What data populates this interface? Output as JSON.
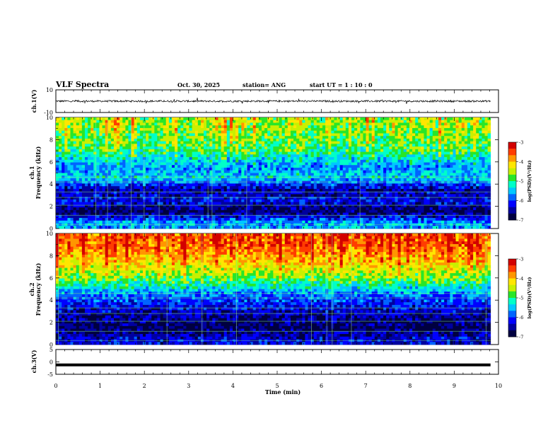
{
  "header": {
    "title": "VLF Spectra",
    "date": "Oct. 30, 2025",
    "station": "station= ANG",
    "start": "start  UT =   1 : 10 : 0"
  },
  "colors": {
    "scale": [
      "#000040",
      "#0000a0",
      "#0000ff",
      "#0064ff",
      "#00c8ff",
      "#00ffc8",
      "#28e628",
      "#c8f000",
      "#ffe600",
      "#ff9600",
      "#ff3c00",
      "#d20000"
    ],
    "trace": "#000000"
  },
  "chart_data": [
    {
      "type": "line",
      "ylabel": "ch.1(V)",
      "ylim": [
        -10,
        10
      ],
      "yticks": [
        "10",
        "-10"
      ],
      "baseline": 0,
      "grid": false
    },
    {
      "type": "heatmap",
      "ylabel": "ch.1\nFrequency (kHz)",
      "ylim": [
        0,
        10
      ],
      "yticks": [
        "0",
        "2",
        "4",
        "6",
        "8",
        "10"
      ],
      "colorbar": {
        "label": "log(PSD)(V²/Hz)",
        "range": [
          -7,
          -3
        ],
        "ticks": [
          "-3",
          "-4",
          "-5",
          "-6",
          "-7"
        ]
      },
      "intensity_profile_khz": [
        {
          "f": 0.5,
          "level": -5.6
        },
        {
          "f": 1.5,
          "level": -6.8
        },
        {
          "f": 2.5,
          "level": -6.2
        },
        {
          "f": 3.5,
          "level": -6.5
        },
        {
          "f": 4.6,
          "level": -5.4
        },
        {
          "f": 5.5,
          "level": -5.8
        },
        {
          "f": 7.0,
          "level": -5.1
        },
        {
          "f": 9.0,
          "level": -4.9
        }
      ]
    },
    {
      "type": "heatmap",
      "ylabel": "ch.2\nFrequency (kHz)",
      "ylim": [
        0,
        10
      ],
      "yticks": [
        "0",
        "2",
        "4",
        "6",
        "8",
        "10"
      ],
      "colorbar": {
        "label": "log(PSD)(V²/Hz)",
        "range": [
          -7,
          -3
        ],
        "ticks": [
          "-3",
          "-4",
          "-5",
          "-6",
          "-7"
        ]
      },
      "intensity_profile_khz": [
        {
          "f": 0.5,
          "level": -6.3
        },
        {
          "f": 1.5,
          "level": -6.8
        },
        {
          "f": 3.0,
          "level": -6.4
        },
        {
          "f": 4.5,
          "level": -5.8
        },
        {
          "f": 6.0,
          "level": -4.8
        },
        {
          "f": 7.5,
          "level": -4.2
        },
        {
          "f": 9.0,
          "level": -3.8
        }
      ]
    },
    {
      "type": "line",
      "ylabel": "ch.3(V)",
      "ylim": [
        -5,
        5
      ],
      "yticks": [
        "5",
        "0",
        "-5"
      ],
      "constant_value": -1.2,
      "grid": false
    }
  ],
  "xaxis": {
    "label": "Time (min)",
    "range": [
      0,
      10
    ],
    "ticks": [
      "0",
      "1",
      "2",
      "3",
      "4",
      "5",
      "6",
      "7",
      "8",
      "9",
      "10"
    ],
    "data_end": 9.82
  }
}
